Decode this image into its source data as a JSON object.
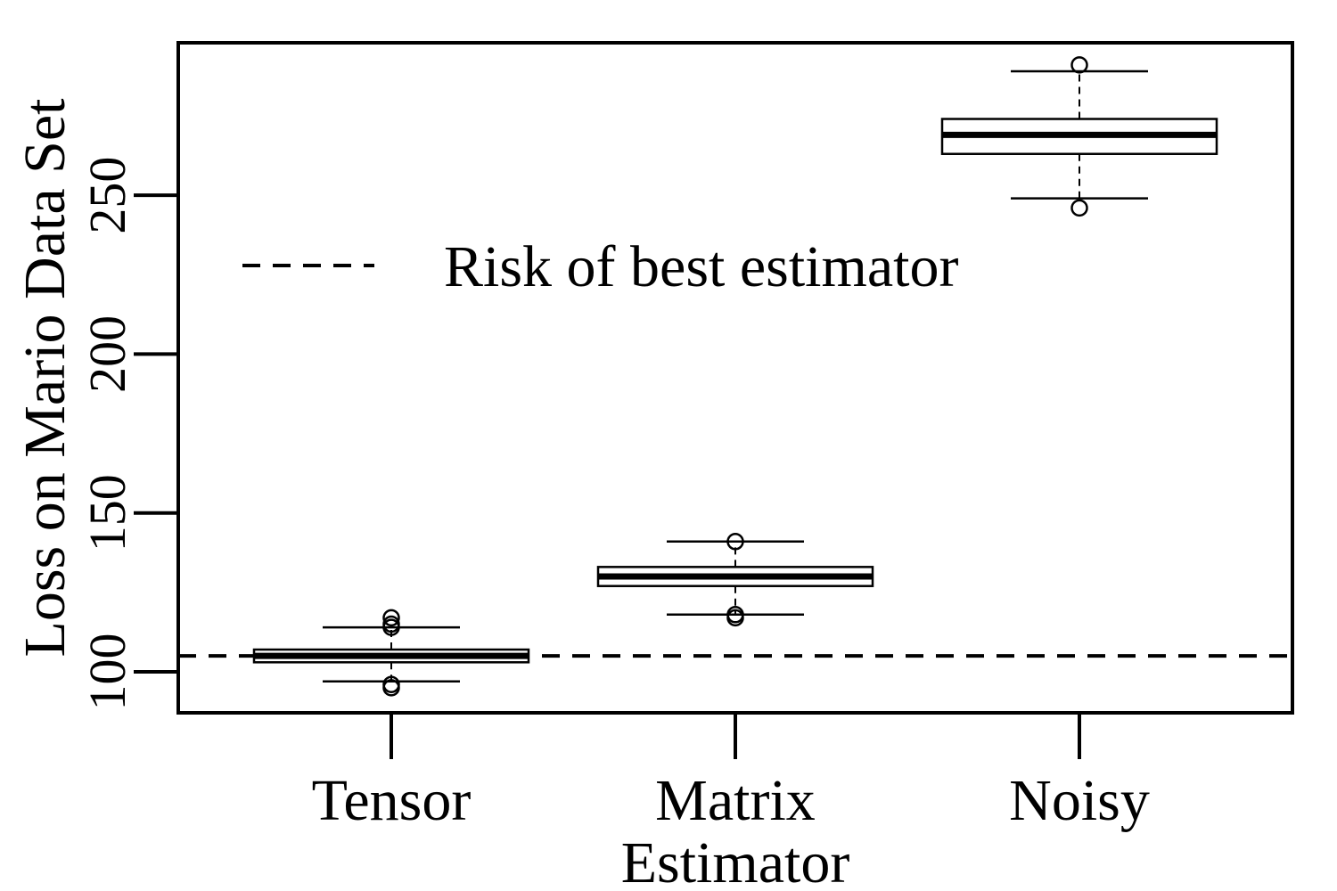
{
  "chart_data": {
    "type": "box",
    "title": "",
    "xlabel": "Estimator",
    "ylabel": "Loss on Mario Data Set",
    "ylim": [
      87,
      297
    ],
    "yticks": [
      100,
      150,
      200,
      250
    ],
    "grid": false,
    "legend_position": "upper-left inside",
    "categories": [
      "Tensor",
      "Matrix",
      "Noisy"
    ],
    "boxes": [
      {
        "name": "Tensor",
        "whisker_low": 97,
        "q1": 103,
        "median": 105,
        "q3": 107,
        "whisker_high": 114,
        "outliers": [
          95,
          96,
          114,
          115,
          117
        ]
      },
      {
        "name": "Matrix",
        "whisker_low": 118,
        "q1": 127,
        "median": 130,
        "q3": 133,
        "whisker_high": 141,
        "outliers": [
          117,
          118,
          141
        ]
      },
      {
        "name": "Noisy",
        "whisker_low": 249,
        "q1": 263,
        "median": 269,
        "q3": 274,
        "whisker_high": 289,
        "outliers": [
          246,
          291
        ]
      }
    ],
    "reference_line": {
      "label": "Risk of best estimator",
      "y": 105,
      "style": "dashed"
    },
    "colors": {
      "line": "#000000",
      "background": "#ffffff"
    }
  }
}
